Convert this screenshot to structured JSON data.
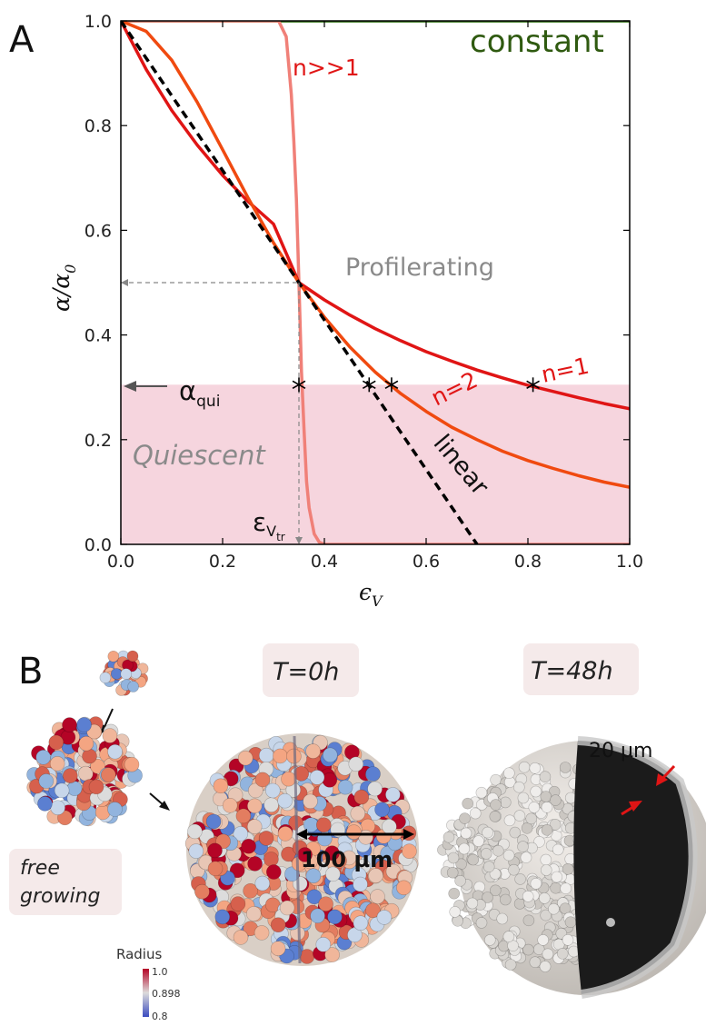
{
  "panels": {
    "a_letter": "A",
    "b_letter": "B"
  },
  "chart_data": {
    "type": "line",
    "xlabel": "ϵ",
    "xlabel_sub": "V",
    "ylabel": "α/α",
    "ylabel_sub": "0",
    "xlim": [
      0.0,
      1.0
    ],
    "ylim": [
      0.0,
      1.0
    ],
    "xticks": [
      "0.0",
      "0.2",
      "0.4",
      "0.6",
      "0.8",
      "1.0"
    ],
    "yticks": [
      "0.0",
      "0.2",
      "0.4",
      "0.6",
      "0.8",
      "1.0"
    ],
    "regions": {
      "quiescent_label": "Quiescent",
      "quiescent_max": 0.305,
      "quiescent_color": "#f6d5de",
      "proliferating_label": "Profilerating"
    },
    "annotations": {
      "alpha_qui": "α",
      "alpha_qui_sub": "qui",
      "alpha_qui_value": 0.305,
      "eps_vtr": "ε",
      "eps_vtr_sub1": "V",
      "eps_vtr_sub2": "tr",
      "eps_vtr_value": 0.35,
      "half_level": 0.5
    },
    "series": [
      {
        "name": "constant",
        "label": "constant",
        "color": "#2a6e0c",
        "x": [
          0.0,
          1.0
        ],
        "y": [
          1.0,
          1.0
        ]
      },
      {
        "name": "n>>1",
        "label": "n>>1",
        "color": "#f08078",
        "x": [
          0.0,
          0.31,
          0.325,
          0.335,
          0.34,
          0.345,
          0.35,
          0.355,
          0.36,
          0.365,
          0.37,
          0.38,
          0.39,
          0.4,
          1.0
        ],
        "y": [
          1.0,
          1.0,
          0.97,
          0.86,
          0.77,
          0.66,
          0.5,
          0.33,
          0.22,
          0.12,
          0.07,
          0.02,
          0.004,
          0.0,
          0.0
        ]
      },
      {
        "name": "n=1",
        "label": "n=1",
        "color": "#e01515",
        "x": [
          0.0,
          0.05,
          0.1,
          0.15,
          0.2,
          0.25,
          0.3,
          0.35,
          0.4,
          0.45,
          0.5,
          0.55,
          0.6,
          0.65,
          0.7,
          0.75,
          0.8,
          0.85,
          0.9,
          0.95,
          1.0
        ],
        "y": [
          1.0,
          0.907,
          0.829,
          0.763,
          0.705,
          0.655,
          0.612,
          0.5,
          0.467,
          0.438,
          0.412,
          0.389,
          0.368,
          0.35,
          0.333,
          0.318,
          0.304,
          0.292,
          0.28,
          0.269,
          0.259
        ]
      },
      {
        "name": "n=2",
        "label": "n=2",
        "color": "#f04a10",
        "x": [
          0.0,
          0.05,
          0.1,
          0.15,
          0.2,
          0.25,
          0.3,
          0.35,
          0.4,
          0.45,
          0.5,
          0.55,
          0.6,
          0.65,
          0.7,
          0.75,
          0.8,
          0.85,
          0.9,
          0.95,
          1.0
        ],
        "y": [
          1.0,
          0.98,
          0.925,
          0.845,
          0.754,
          0.662,
          0.576,
          0.5,
          0.434,
          0.377,
          0.329,
          0.288,
          0.254,
          0.224,
          0.2,
          0.178,
          0.16,
          0.145,
          0.131,
          0.119,
          0.109
        ]
      },
      {
        "name": "linear",
        "label": "linear",
        "color": "#000000",
        "dashed": true,
        "x": [
          0.0,
          0.7
        ],
        "y": [
          1.0,
          0.0
        ]
      }
    ],
    "markers": {
      "symbol": "*",
      "points": [
        {
          "x": 0.35,
          "y": 0.305
        },
        {
          "x": 0.488,
          "y": 0.305
        },
        {
          "x": 0.532,
          "y": 0.305
        },
        {
          "x": 0.81,
          "y": 0.305
        }
      ]
    }
  },
  "panel_b": {
    "t0_label": "T=0h",
    "t48_label": "T=48h",
    "free_growing_line1": "free",
    "free_growing_line2": "growing",
    "scale_100": "100 µm",
    "scale_20": "20 µm",
    "colorbar_title": "Radius",
    "colorbar_ticks": [
      "1.0",
      "0.898",
      "0.8"
    ]
  }
}
